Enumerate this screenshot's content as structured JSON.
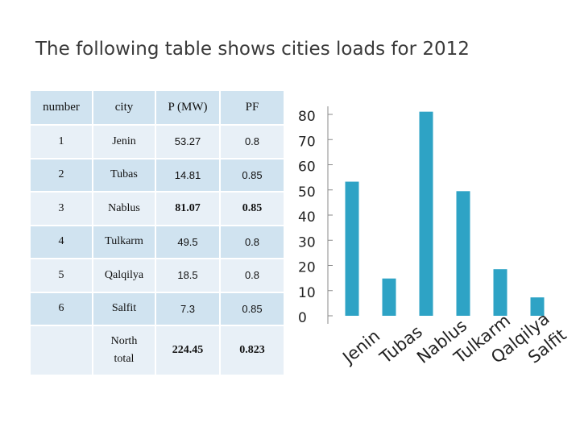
{
  "title": "The following table shows cities loads for 2012",
  "table": {
    "headers": [
      "number",
      "city",
      "P (MW)",
      "PF"
    ],
    "rows": [
      {
        "number": "1",
        "city": "Jenin",
        "p": "53.27",
        "pf": "0.8"
      },
      {
        "number": "2",
        "city": "Tubas",
        "p": "14.81",
        "pf": "0.85"
      },
      {
        "number": "3",
        "city": "Nablus",
        "p": "81.07",
        "pf": "0.85"
      },
      {
        "number": "4",
        "city": "Tulkarm",
        "p": "49.5",
        "pf": "0.8"
      },
      {
        "number": "5",
        "city": "Qalqilya",
        "p": "18.5",
        "pf": "0.8"
      },
      {
        "number": "6",
        "city": "Salfit",
        "p": "7.3",
        "pf": "0.85"
      }
    ],
    "total": {
      "label_line1": "North",
      "label_line2": "total",
      "p": "224.45",
      "pf": "0.823"
    }
  },
  "colors": {
    "bar": "#2ea3c5",
    "header_bg": "#d0e3f0",
    "row_light": "#e8f0f7"
  },
  "chart_data": {
    "type": "bar",
    "categories": [
      "Jenin",
      "Tubas",
      "Nablus",
      "Tulkarm",
      "Qalqilya",
      "Salfit"
    ],
    "values": [
      53.27,
      14.81,
      81.07,
      49.5,
      18.5,
      7.3
    ],
    "yticks": [
      "0",
      "10",
      "20",
      "30",
      "40",
      "50",
      "60",
      "70",
      "80"
    ],
    "ylim": [
      0,
      80
    ],
    "title": "",
    "xlabel": "",
    "ylabel": "",
    "grid": false
  }
}
